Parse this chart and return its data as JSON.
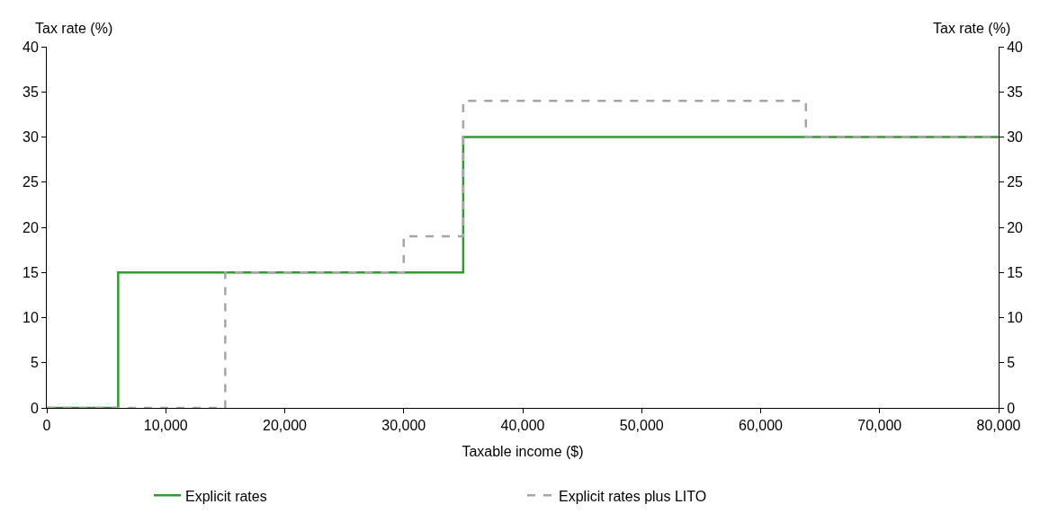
{
  "chart_data": {
    "type": "step",
    "xlabel": "Taxable income ($)",
    "ylabel": "Tax rate (%)",
    "y2label": "Tax rate (%)",
    "xlim": [
      0,
      80000
    ],
    "xticks": [
      0,
      {
        "value": 10000,
        "label": "10,000"
      },
      {
        "value": 20000,
        "label": "20,000"
      },
      {
        "value": 30000,
        "label": "30,000"
      },
      {
        "value": 40000,
        "label": "40,000"
      },
      {
        "value": 50000,
        "label": "50,000"
      },
      {
        "value": 60000,
        "label": "60,000"
      },
      {
        "value": 70000,
        "label": "70,000"
      },
      {
        "value": 80000,
        "label": "80,000"
      }
    ],
    "ylim": [
      0,
      40
    ],
    "yticks": [
      0,
      5,
      10,
      15,
      20,
      25,
      30,
      35,
      40
    ],
    "y2lim": [
      0,
      40
    ],
    "y2ticks": [
      0,
      5,
      10,
      15,
      20,
      25,
      30,
      35,
      40
    ],
    "legend": "bottom",
    "marker": "none",
    "series": [
      {
        "name": "Explicit rates",
        "color": "#339933",
        "line_style": "solid",
        "x": [
          0,
          6000,
          35000,
          80000
        ],
        "values": [
          0,
          15,
          30,
          30
        ]
      },
      {
        "name": "Explicit rates plus LITO",
        "color": "#a6a6a6",
        "line_style": "dashed",
        "x": [
          0,
          15000,
          30000,
          35000,
          63800,
          80000
        ],
        "values": [
          0,
          15,
          19,
          34,
          30,
          30
        ]
      }
    ]
  }
}
